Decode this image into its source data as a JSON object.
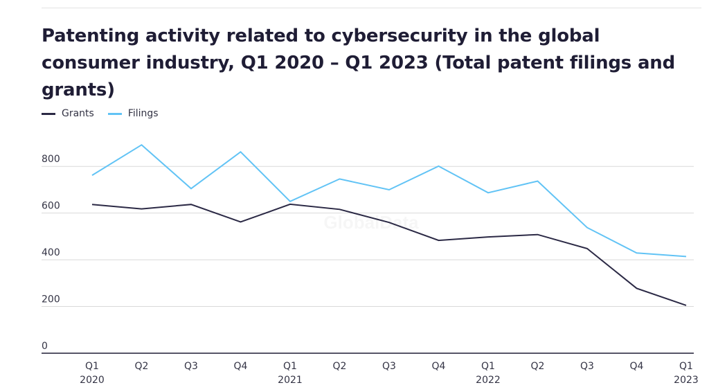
{
  "title": "Patenting activity related to cybersecurity in the global consumer industry, Q1 2020 – Q1 2023 (Total patent filings and grants)",
  "watermark": "GlobalData",
  "colors": {
    "grants": "#2b2945",
    "filings": "#61c3f5",
    "grid": "#d9d9d9",
    "axis": "#1f1d35"
  },
  "chart_data": {
    "type": "line",
    "title": "Patenting activity related to cybersecurity in the global consumer industry, Q1 2020 – Q1 2023 (Total patent filings and grants)",
    "x": [
      {
        "quarter": "Q1",
        "year": "2020"
      },
      {
        "quarter": "Q2",
        "year": ""
      },
      {
        "quarter": "Q3",
        "year": ""
      },
      {
        "quarter": "Q4",
        "year": ""
      },
      {
        "quarter": "Q1",
        "year": "2021"
      },
      {
        "quarter": "Q2",
        "year": ""
      },
      {
        "quarter": "Q3",
        "year": ""
      },
      {
        "quarter": "Q4",
        "year": ""
      },
      {
        "quarter": "Q1",
        "year": "2022"
      },
      {
        "quarter": "Q2",
        "year": ""
      },
      {
        "quarter": "Q3",
        "year": ""
      },
      {
        "quarter": "Q4",
        "year": ""
      },
      {
        "quarter": "Q1",
        "year": "2023"
      }
    ],
    "series": [
      {
        "name": "Grants",
        "color": "#2b2945",
        "values": [
          637,
          618,
          637,
          562,
          638,
          616,
          560,
          483,
          498,
          508,
          448,
          278,
          205
        ]
      },
      {
        "name": "Filings",
        "color": "#61c3f5",
        "values": [
          762,
          892,
          705,
          862,
          650,
          746,
          700,
          801,
          687,
          737,
          538,
          429,
          414
        ]
      }
    ],
    "yticks": [
      0,
      200,
      400,
      600,
      800
    ],
    "ylim": [
      0,
      900
    ],
    "grid": true,
    "legend_position": "top-left",
    "xlabel": "",
    "ylabel": ""
  }
}
